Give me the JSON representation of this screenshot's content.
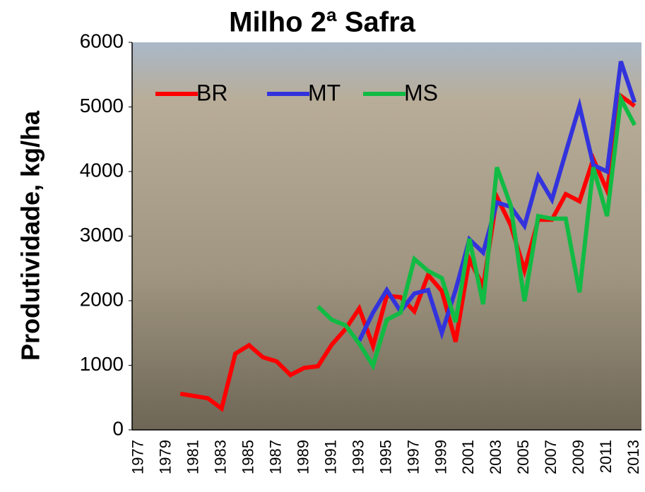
{
  "chart_data": {
    "type": "line",
    "title": "Milho 2ª Safra",
    "y_label": "Produtividade, kg/ha",
    "categories": [
      "1977",
      null,
      "1979",
      null,
      "1981",
      null,
      "1983",
      null,
      "1985",
      null,
      "1987",
      null,
      "1989",
      null,
      "1991",
      null,
      "1993",
      null,
      "1995",
      null,
      "1997",
      null,
      "1999",
      null,
      "2001",
      null,
      "2003",
      null,
      "2005",
      null,
      "2007",
      null,
      "2009",
      null,
      "2011",
      null,
      "2013"
    ],
    "series": [
      {
        "name": "BR",
        "color": "#ff0000",
        "values": [
          null,
          null,
          null,
          560,
          525,
          490,
          330,
          1180,
          1310,
          1125,
          1060,
          850,
          960,
          985,
          1320,
          1560,
          1880,
          1300,
          2075,
          2055,
          1835,
          2400,
          2150,
          1365,
          2645,
          2220,
          3605,
          3170,
          2470,
          3255,
          3255,
          3650,
          3540,
          4195,
          3705,
          5170,
          5015
        ]
      },
      {
        "name": "MT",
        "color": "#3333dd",
        "values": [
          null,
          null,
          null,
          null,
          null,
          null,
          null,
          null,
          null,
          null,
          null,
          null,
          null,
          null,
          null,
          null,
          1380,
          1815,
          2165,
          1835,
          2110,
          2165,
          1500,
          2165,
          2950,
          2745,
          3520,
          3455,
          3160,
          3925,
          3565,
          4295,
          5015,
          4100,
          4000,
          5705,
          5070
        ]
      },
      {
        "name": "MS",
        "color": "#11bb44",
        "values": [
          null,
          null,
          null,
          null,
          null,
          null,
          null,
          null,
          null,
          null,
          null,
          null,
          null,
          1910,
          1705,
          1620,
          1335,
          995,
          1705,
          1815,
          2645,
          2460,
          2350,
          1670,
          2960,
          1945,
          4065,
          3475,
          1990,
          3310,
          3270,
          3270,
          2130,
          4065,
          3310,
          5125,
          4720
        ]
      }
    ],
    "ylim": [
      0,
      6000
    ],
    "yticks": [
      0,
      1000,
      2000,
      3000,
      4000,
      5000,
      6000
    ],
    "legend": "top-left"
  }
}
